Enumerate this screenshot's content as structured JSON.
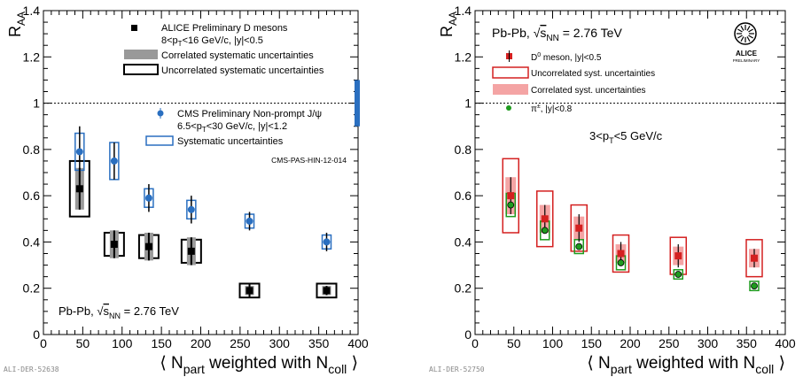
{
  "chart_data": [
    {
      "type": "scatter",
      "panel": "left",
      "ylabel": "R_AA",
      "xlabel_main": "⟨ N",
      "xlabel_sub": "part",
      "xlabel_mid": " weighted with N",
      "xlabel_sub2": "coll",
      "xlabel_end": " ⟩",
      "xlim": [
        0,
        400
      ],
      "ylim": [
        0,
        1.4
      ],
      "xticks": [
        "0",
        "50",
        "100",
        "150",
        "200",
        "250",
        "300",
        "350",
        "400"
      ],
      "yticks": [
        "0",
        "0.2",
        "0.4",
        "0.6",
        "0.8",
        "1",
        "1.2",
        "1.4"
      ],
      "reference_line_y": 1,
      "legend": {
        "alice_label": "ALICE Preliminary D mesons",
        "alice_cut": "8<p",
        "alice_cut_sub": "T",
        "alice_cut_end": "<16 GeV/c, |y|<0.5",
        "corr_label": "Correlated systematic uncertainties",
        "uncorr_label": "Uncorrelated systematic uncertainties",
        "cms_label": "CMS Preliminary Non-prompt J/ψ",
        "cms_cut": "6.5<p",
        "cms_cut_sub": "T",
        "cms_cut_end": "<30 GeV/c, |y|<1.2",
        "cms_syst_label": "Systematic uncertainties",
        "cms_ref": "CMS-PAS-HIN-12-014"
      },
      "system_label": "Pb-Pb, ",
      "energy_label": "s",
      "energy_sub": "NN",
      "energy_value": " = 2.76 TeV",
      "footer": "ALI-DER-52638",
      "series": [
        {
          "name": "ALICE Preliminary D mesons",
          "color": "#000000",
          "x": [
            46,
            90,
            134,
            188,
            262,
            360
          ],
          "y": [
            0.63,
            0.39,
            0.38,
            0.36,
            0.19,
            0.19
          ],
          "stat": [
            0.09,
            0.06,
            0.06,
            0.06,
            0.03,
            0.02
          ],
          "uncorr": [
            0.12,
            0.05,
            0.05,
            0.05,
            0.03,
            0.03
          ],
          "corr": [
            0.09,
            0.06,
            0.06,
            0.06,
            0.02,
            0.02
          ]
        },
        {
          "name": "CMS Preliminary Non-prompt J/ψ",
          "color": "#2a6fc0",
          "x": [
            46,
            90,
            134,
            188,
            262,
            360
          ],
          "y": [
            0.79,
            0.75,
            0.59,
            0.54,
            0.49,
            0.4
          ],
          "stat": [
            0.11,
            0.08,
            0.06,
            0.06,
            0.04,
            0.04
          ],
          "syst": [
            0.08,
            0.08,
            0.04,
            0.04,
            0.03,
            0.03
          ],
          "global_box": [
            0.9,
            1.1
          ]
        }
      ]
    },
    {
      "type": "scatter",
      "panel": "right",
      "ylabel": "R_AA",
      "xlabel_main": "⟨ N",
      "xlabel_sub": "part",
      "xlabel_mid": " weighted with N",
      "xlabel_sub2": "coll",
      "xlabel_end": " ⟩",
      "xlim": [
        0,
        400
      ],
      "ylim": [
        0,
        1.4
      ],
      "xticks": [
        "0",
        "50",
        "100",
        "150",
        "200",
        "250",
        "300",
        "350",
        "400"
      ],
      "yticks": [
        "0",
        "0.2",
        "0.4",
        "0.6",
        "0.8",
        "1",
        "1.2",
        "1.4"
      ],
      "reference_line_y": 1,
      "legend": {
        "system_label": "Pb-Pb, ",
        "energy_label": "s",
        "energy_sub": "NN",
        "energy_value": " = 2.76 TeV",
        "d0_label": "D",
        "d0_sup": "0",
        "d0_end": " meson, |y|<0.5",
        "uncorr_label": "Uncorrelated syst. uncertainties",
        "corr_label": "Correlated syst. uncertainties",
        "pi_label": "π",
        "pi_sup": "±",
        "pi_end": ", |y|<0.8",
        "pt_range": "3<p",
        "pt_sub": "T",
        "pt_end": "<5 GeV/c"
      },
      "logo_text_1": "ALICE",
      "logo_text_2": "PRELIMINARY",
      "footer": "ALI-DER-52750",
      "series": [
        {
          "name": "D0 meson, |y|<0.5",
          "color": "#d42020",
          "x": [
            46,
            90,
            134,
            188,
            262,
            360
          ],
          "y": [
            0.6,
            0.5,
            0.46,
            0.35,
            0.34,
            0.33
          ],
          "stat": [
            0.08,
            0.06,
            0.06,
            0.05,
            0.05,
            0.04
          ],
          "uncorr": [
            0.16,
            0.12,
            0.1,
            0.08,
            0.08,
            0.08
          ],
          "corr": [
            0.08,
            0.06,
            0.05,
            0.04,
            0.04,
            0.04
          ]
        },
        {
          "name": "π±, |y|<0.8",
          "color": "#1e9b1e",
          "x": [
            46,
            90,
            134,
            188,
            262,
            360
          ],
          "y": [
            0.56,
            0.45,
            0.38,
            0.31,
            0.26,
            0.21
          ],
          "stat": [
            0.01,
            0.01,
            0.01,
            0.01,
            0.01,
            0.01
          ],
          "syst": [
            0.05,
            0.04,
            0.03,
            0.03,
            0.02,
            0.02
          ]
        }
      ]
    }
  ]
}
